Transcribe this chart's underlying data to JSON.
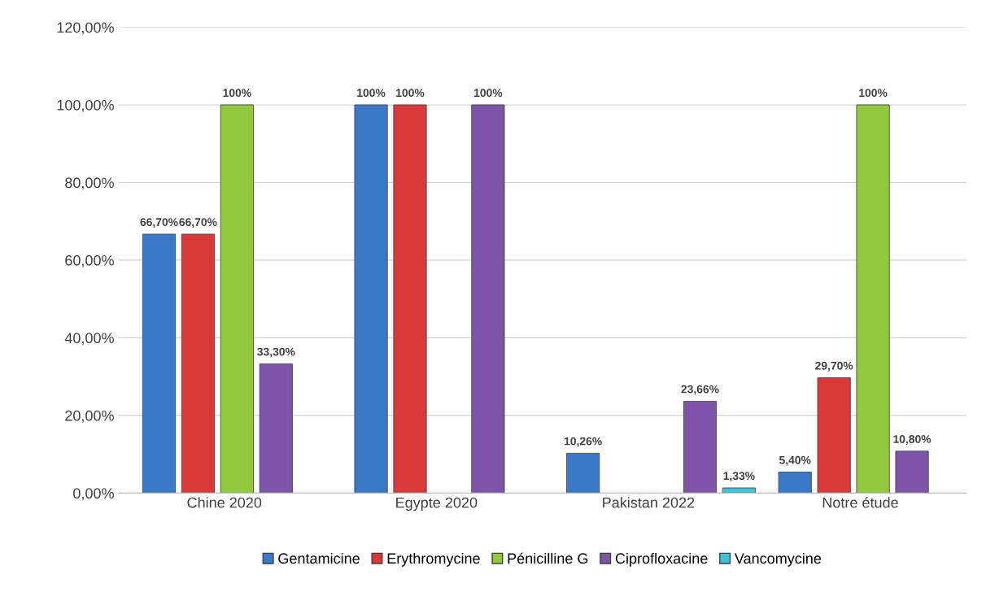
{
  "chart_data": {
    "type": "bar",
    "categories": [
      "Chine 2020",
      "Egypte 2020",
      "Pakistan 2022",
      "Notre étude"
    ],
    "series": [
      {
        "name": "Gentamicine",
        "color": "#3a78c8",
        "values": [
          66.7,
          100,
          10.26,
          5.4
        ],
        "value_labels": [
          "66,70%",
          "100%",
          "10,26%",
          "5,40%"
        ]
      },
      {
        "name": "Erythromycine",
        "color": "#d83a3a",
        "values": [
          66.7,
          100,
          null,
          29.7
        ],
        "value_labels": [
          "66,70%",
          "100%",
          null,
          "29,70%"
        ]
      },
      {
        "name": "Pénicilline G",
        "color": "#92c83e",
        "values": [
          100,
          null,
          null,
          100
        ],
        "value_labels": [
          "100%",
          null,
          null,
          "100%"
        ]
      },
      {
        "name": "Ciprofloxacine",
        "color": "#7d55a8",
        "values": [
          33.3,
          100,
          23.66,
          10.8
        ],
        "value_labels": [
          "33,30%",
          "100%",
          "23,66%",
          "10,80%"
        ]
      },
      {
        "name": "Vancomycine",
        "color": "#3fbfd8",
        "values": [
          null,
          null,
          1.33,
          null
        ],
        "value_labels": [
          null,
          null,
          "1,33%",
          null
        ]
      }
    ],
    "ylim": [
      0,
      120
    ],
    "yticks": [
      {
        "value": 0,
        "label": "0,00%"
      },
      {
        "value": 20,
        "label": "20,00%"
      },
      {
        "value": 40,
        "label": "40,00%"
      },
      {
        "value": 60,
        "label": "60,00%"
      },
      {
        "value": 80,
        "label": "80,00%"
      },
      {
        "value": 100,
        "label": "100,00%"
      },
      {
        "value": 120,
        "label": "120,00%"
      }
    ],
    "grid": "y",
    "legend": "bottom"
  }
}
